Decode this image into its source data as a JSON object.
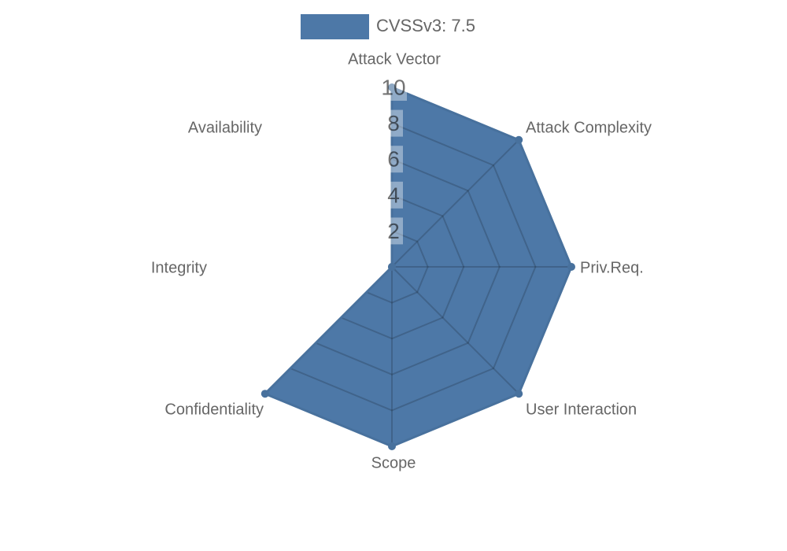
{
  "chart_data": {
    "type": "radar",
    "legend_position": "top",
    "legend": [
      {
        "label": "CVSSv3: 7.5",
        "color": "#4D78A7"
      }
    ],
    "categories": [
      "Attack Vector",
      "Attack Complexity",
      "Priv.Req.",
      "User Interaction",
      "Scope",
      "Confidentiality",
      "Integrity",
      "Availability"
    ],
    "series": [
      {
        "name": "CVSSv3: 7.5",
        "values": [
          10,
          10,
          10,
          10,
          10,
          10,
          0,
          0
        ]
      }
    ],
    "axis_range": [
      0,
      10
    ],
    "tick_values": [
      2,
      4,
      6,
      8,
      10
    ],
    "grid": true,
    "style": {
      "fill": "#4D78A7",
      "border": "#48719D",
      "grid_line": "rgba(0,0,0,0.17)",
      "tick_backdrop": "rgba(255,255,255,0.38)",
      "tick_text": "rgba(0,0,0,0.55)",
      "label_color": "#666666"
    }
  }
}
